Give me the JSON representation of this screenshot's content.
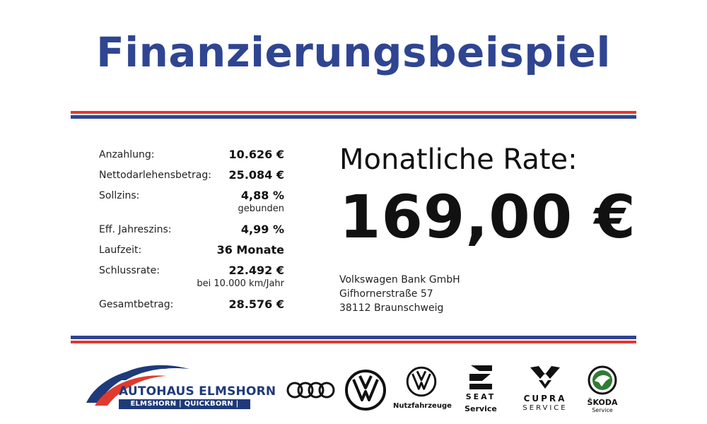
{
  "title": "Finanzierungsbeispiel",
  "facts": [
    {
      "label": "Anzahlung:",
      "value": "10.626 €",
      "sub": ""
    },
    {
      "label": "Nettodarlehensbetrag:",
      "value": "25.084 €",
      "sub": ""
    },
    {
      "label": "Sollzins:",
      "value": "4,88 %",
      "sub": "gebunden"
    },
    {
      "label": "Eff. Jahreszins:",
      "value": "4,99 %",
      "sub": ""
    },
    {
      "label": "Laufzeit:",
      "value": "36 Monate",
      "sub": ""
    },
    {
      "label": "Schlussrate:",
      "value": "22.492 €",
      "sub": "bei 10.000 km/Jahr"
    },
    {
      "label": "Gesamtbetrag:",
      "value": "28.576 €",
      "sub": ""
    }
  ],
  "rate": {
    "label": "Monatliche Rate:",
    "value": "169,00 €"
  },
  "bank": {
    "name": "Volkswagen Bank GmbH",
    "street": "Gifhornerstraße 57",
    "city": "38112 Braunschweig"
  },
  "dealer": {
    "name": "AUTOHAUS ELMSHORN",
    "locations": "ELMSHORN | QUICKBORN | HAMBURG"
  },
  "brands": {
    "vwn_label": "Nutzfahrzeuge",
    "seat_name": "SEAT",
    "seat_label": "Service",
    "cupra_name": "CUPRA",
    "cupra_label": "SERVICE",
    "skoda_name": "ŠKODA",
    "skoda_label": "Service"
  },
  "colors": {
    "title_blue": "#2f4592",
    "stripe_red": "#e03a2e",
    "dealer_blue": "#1f3a7a"
  }
}
